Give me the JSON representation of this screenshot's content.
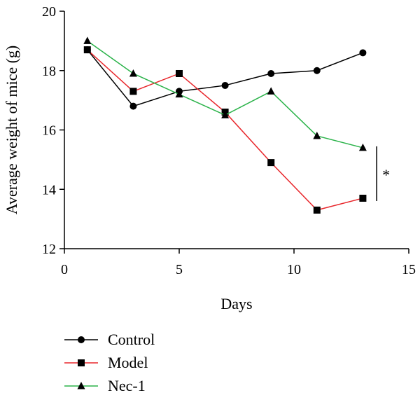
{
  "chart_data": {
    "type": "line",
    "title": "",
    "xlabel": "Days",
    "ylabel": "Average weight of mice (g)",
    "xlim": [
      0,
      15
    ],
    "ylim": [
      12,
      20
    ],
    "xticks": [
      0,
      5,
      10,
      15
    ],
    "yticks": [
      12,
      14,
      16,
      18,
      20
    ],
    "x": [
      1,
      3,
      5,
      7,
      9,
      11,
      13
    ],
    "series": [
      {
        "name": "Control",
        "color": "#000000",
        "marker": "circle",
        "values": [
          18.7,
          16.8,
          17.3,
          17.5,
          17.9,
          18.0,
          18.6
        ]
      },
      {
        "name": "Model",
        "color": "#e8262b",
        "marker": "square",
        "values": [
          18.7,
          17.3,
          17.9,
          16.6,
          14.9,
          13.3,
          13.7
        ]
      },
      {
        "name": "Nec-1",
        "color": "#2bb34a",
        "marker": "triangle",
        "values": [
          19.0,
          17.9,
          17.2,
          16.5,
          17.3,
          15.8,
          15.4
        ]
      }
    ],
    "annotation": {
      "text": "*",
      "x": 13.6,
      "y_range": [
        13.7,
        15.4
      ]
    },
    "legend_position": "bottom-left",
    "grid": false
  }
}
